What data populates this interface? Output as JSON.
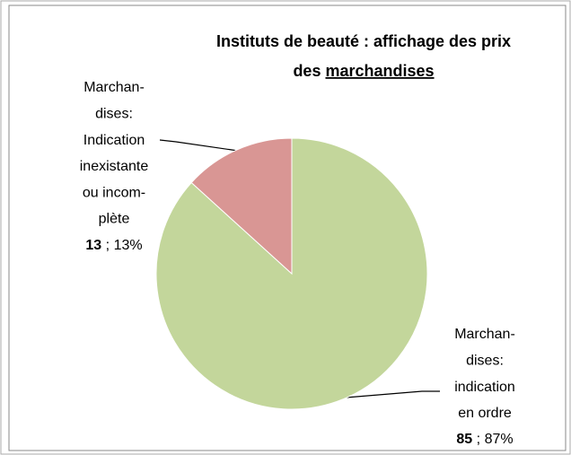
{
  "chart_data": {
    "type": "pie",
    "title": [
      "Instituts de beauté : affichage des prix",
      "des",
      "marchandises"
    ],
    "categories": [
      [
        "Marchan-",
        "dises:",
        "indication",
        "en ordre"
      ],
      [
        "Marchan-",
        "dises:",
        "Indication",
        "inexistante",
        "ou incom-",
        "plète"
      ]
    ],
    "values": [
      85,
      13
    ],
    "percent_labels": [
      "87%",
      "13%"
    ],
    "label_separator": ";",
    "colors": [
      "#c3d69b",
      "#d99694"
    ]
  }
}
